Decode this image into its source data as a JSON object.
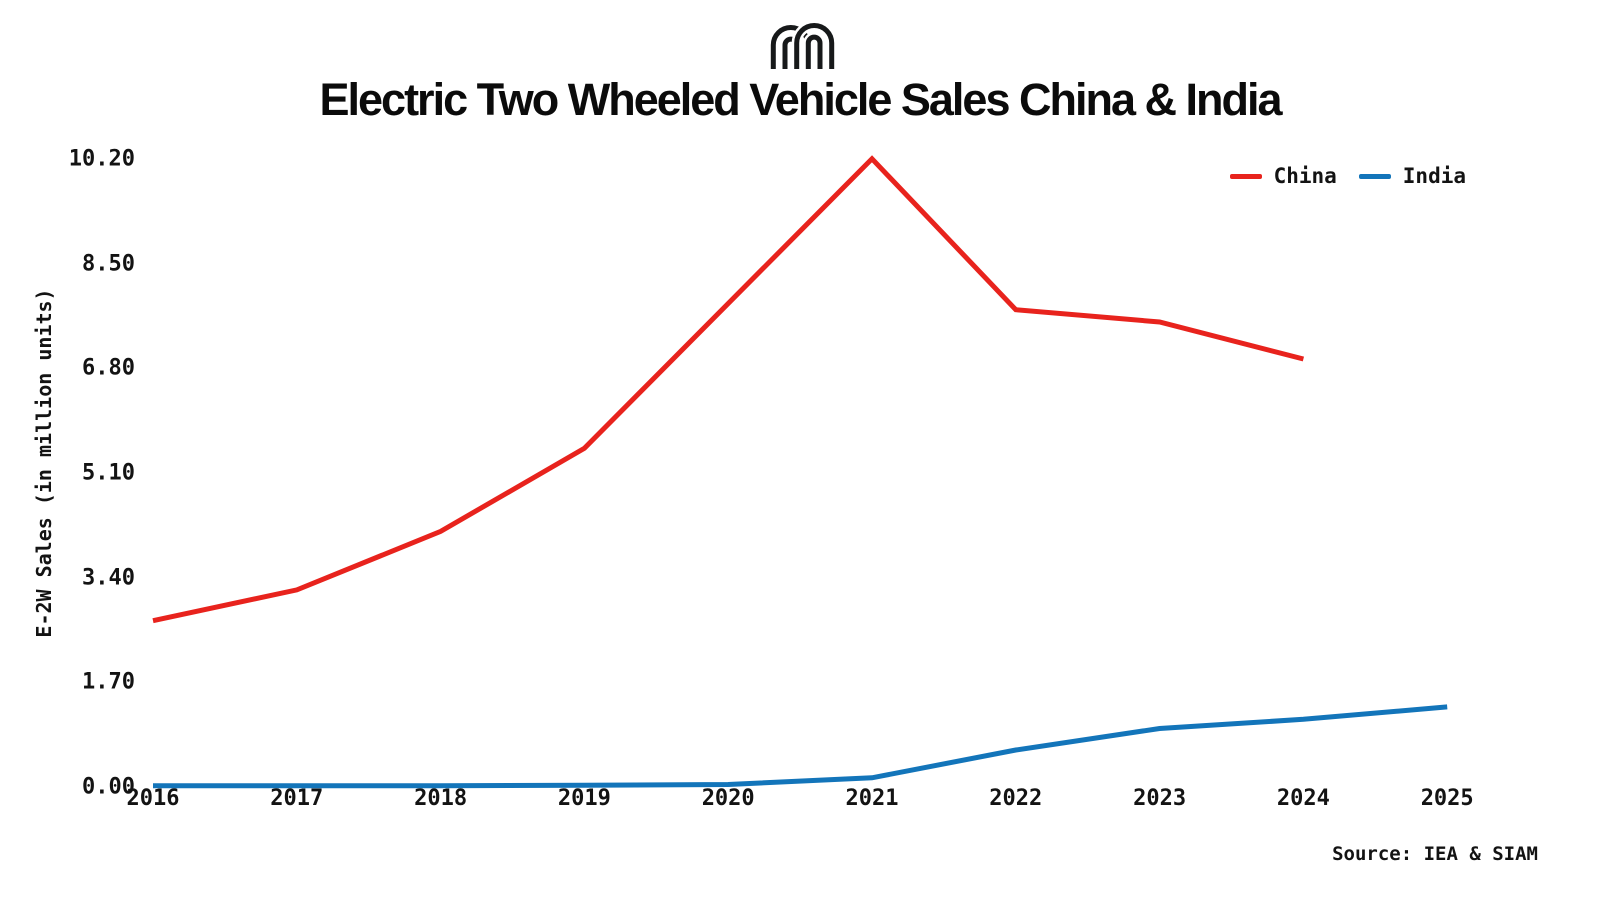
{
  "header": {
    "logo_icon": "mint-logo"
  },
  "source": "Source: IEA & SIAM",
  "chart_data": {
    "type": "line",
    "title": "Electric Two Wheeled Vehicle Sales China & India",
    "xlabel": "",
    "ylabel": "E-2W Sales (in million units)",
    "x": [
      2016,
      2017,
      2018,
      2019,
      2020,
      2021,
      2022,
      2023,
      2024,
      2025
    ],
    "x_tick_labels": [
      "2016",
      "2017",
      "2018",
      "2019",
      "2020",
      "2021",
      "2022",
      "2023",
      "2024",
      "2025"
    ],
    "y_ticks": [
      0.0,
      1.7,
      3.4,
      5.1,
      6.8,
      8.5,
      10.2
    ],
    "y_tick_labels": [
      "0.00",
      "1.70",
      "3.40",
      "5.10",
      "6.80",
      "8.50",
      "10.20"
    ],
    "xlim": [
      2016,
      2025
    ],
    "ylim": [
      0,
      10.2
    ],
    "grid": false,
    "legend_position": "top-right",
    "background_color": "#ffffff",
    "text_color": "#131313",
    "series": [
      {
        "name": "China",
        "color": "#e8231d",
        "values": [
          2.7,
          3.2,
          4.15,
          5.5,
          7.85,
          10.2,
          7.75,
          7.55,
          6.95,
          null
        ]
      },
      {
        "name": "India",
        "color": "#1375ba",
        "values": [
          0.02,
          0.02,
          0.02,
          0.03,
          0.04,
          0.15,
          0.6,
          0.95,
          1.1,
          1.3
        ]
      }
    ]
  }
}
